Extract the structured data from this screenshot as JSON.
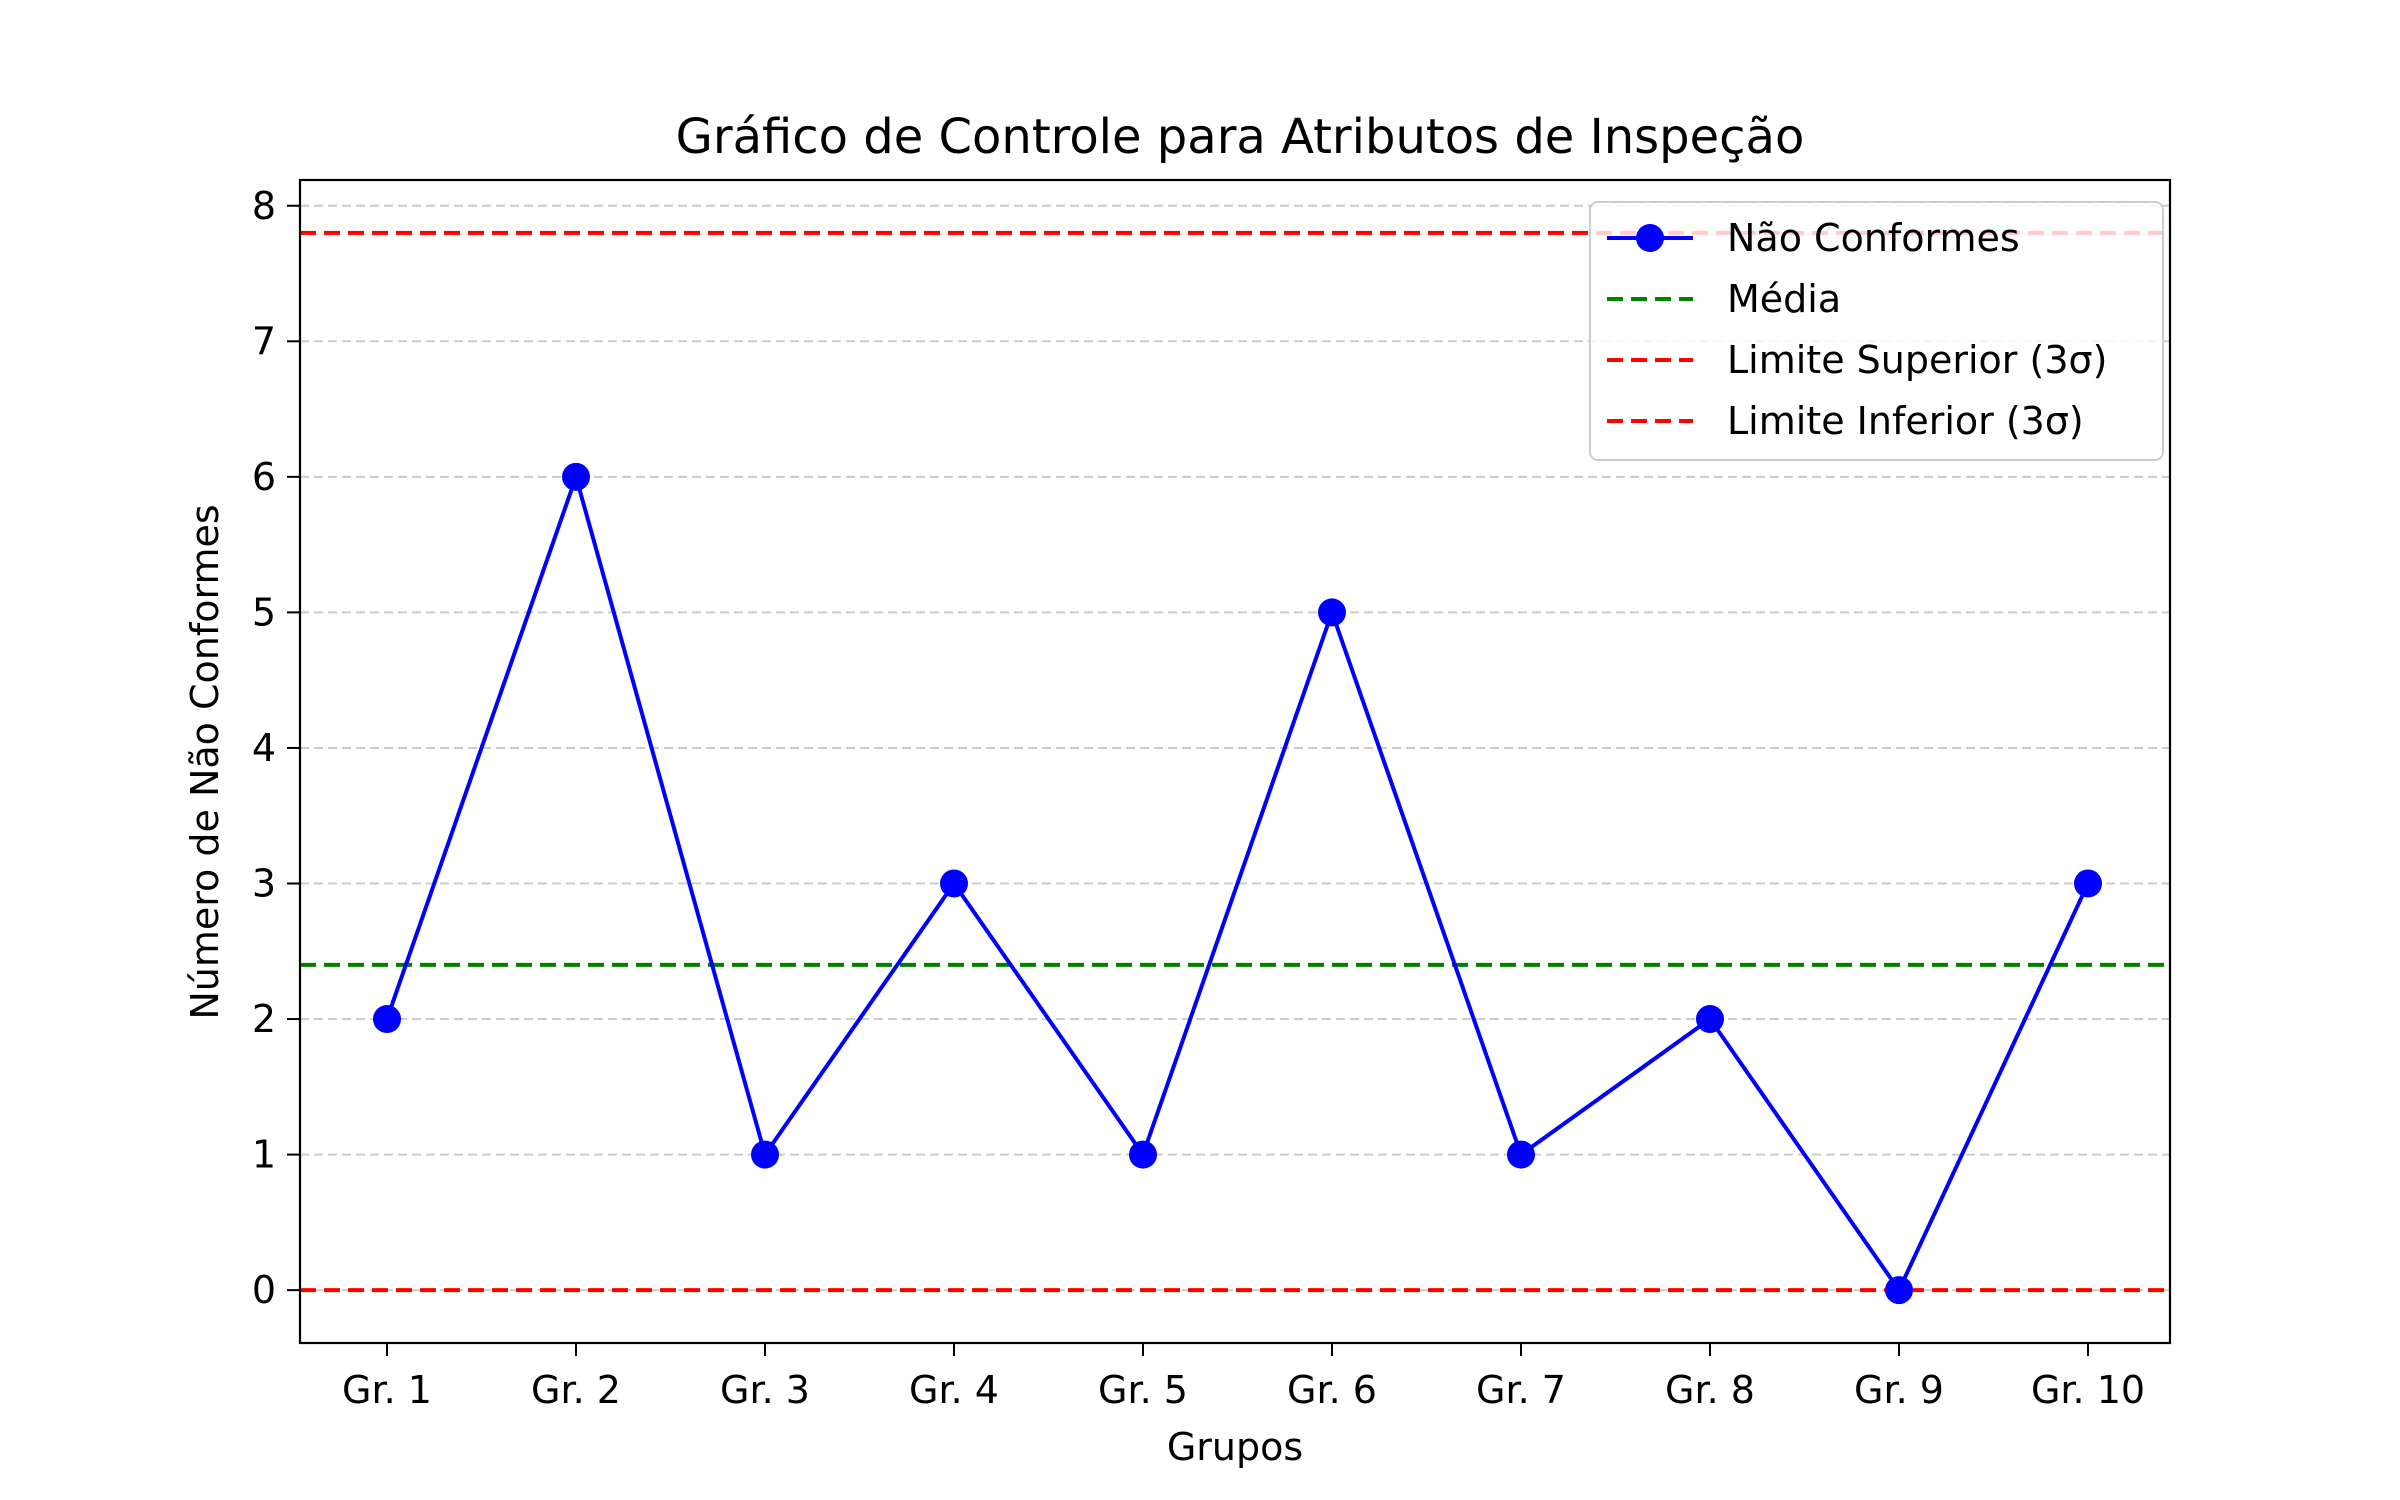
{
  "chart_data": {
    "type": "line",
    "title": "Gráfico de Controle para Atributos de Inspeção",
    "xlabel": "Grupos",
    "ylabel": "Número de Não Conformes",
    "categories": [
      "Gr. 1",
      "Gr. 2",
      "Gr. 3",
      "Gr. 4",
      "Gr. 5",
      "Gr. 6",
      "Gr. 7",
      "Gr. 8",
      "Gr. 9",
      "Gr. 10"
    ],
    "series": [
      {
        "name": "Não Conformes",
        "values": [
          2,
          6,
          1,
          3,
          1,
          5,
          1,
          2,
          0,
          3
        ],
        "color": "#0000ff",
        "marker": "circle"
      }
    ],
    "reference_lines": [
      {
        "name": "Média",
        "value": 2.4,
        "color": "#008000",
        "style": "dashed"
      },
      {
        "name": "Limite Superior (3σ)",
        "value": 7.8,
        "color": "#ff0000",
        "style": "dashed"
      },
      {
        "name": "Limite Inferior (3σ)",
        "value": 0,
        "color": "#ff0000",
        "style": "dashed"
      }
    ],
    "yticks": [
      0,
      1,
      2,
      3,
      4,
      5,
      6,
      7,
      8
    ],
    "ylim": [
      -0.39,
      8.19
    ],
    "grid": "horizontal dashed",
    "legend_position": "top-right"
  }
}
